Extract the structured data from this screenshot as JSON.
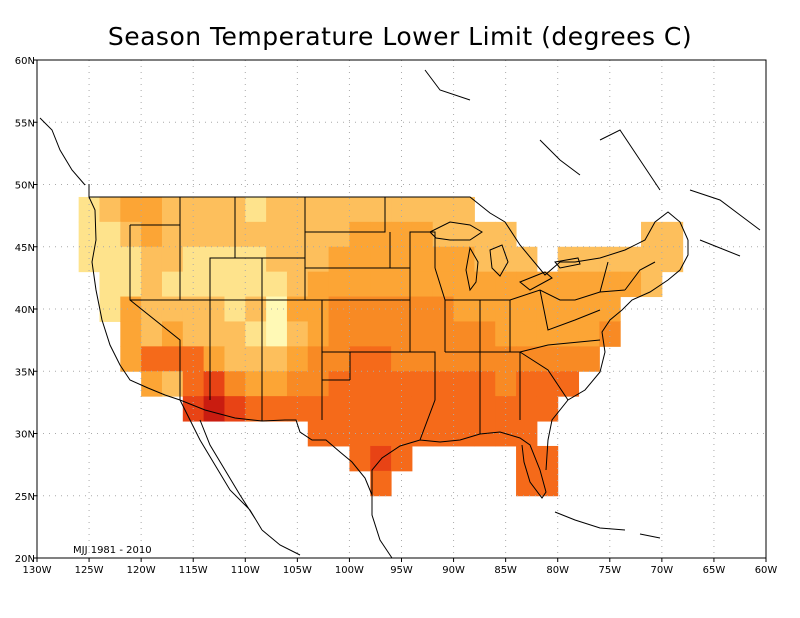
{
  "title": "Season Temperature Lower Limit (degrees C)",
  "period_label": "MJJ 1981 - 2010",
  "x_tick_labels": [
    "130W",
    "125W",
    "120W",
    "115W",
    "110W",
    "105W",
    "100W",
    "95W",
    "90W",
    "85W",
    "80W",
    "75W",
    "70W",
    "65W",
    "60W"
  ],
  "y_tick_labels": [
    "20N",
    "25N",
    "30N",
    "35N",
    "40N",
    "45N",
    "50N",
    "55N",
    "60N"
  ],
  "map_extent": {
    "lon_min": -130,
    "lon_max": -60,
    "lat_min": 20,
    "lat_max": 60
  },
  "colors": {
    "c1": "#fee38c",
    "c2": "#fdbf5c",
    "c3": "#fca535",
    "c4": "#f88a24",
    "c5": "#f56a1a",
    "c6": "#e84315",
    "c7": "#c91c10",
    "c8": "#fff9b5",
    "grid": "#aaaaaa",
    "land_line": "#000000"
  },
  "chart_data": {
    "type": "heatmap",
    "title": "Season Temperature Lower Limit (degrees C)",
    "xlabel": "",
    "ylabel": "",
    "xlim": [
      -130,
      -60
    ],
    "ylim": [
      20,
      60
    ],
    "grid": true,
    "cell_size_deg": 2,
    "rows": [
      {
        "lat": 48,
        "cells": [
          [
            -125,
            "c1"
          ],
          [
            -123,
            "c2"
          ],
          [
            -121,
            "c3"
          ],
          [
            -119,
            "c3"
          ],
          [
            -117,
            "c2"
          ],
          [
            -115,
            "c2"
          ],
          [
            -113,
            "c2"
          ],
          [
            -111,
            "c2"
          ],
          [
            -109,
            "c1"
          ],
          [
            -107,
            "c2"
          ],
          [
            -105,
            "c2"
          ],
          [
            -103,
            "c2"
          ],
          [
            -101,
            "c2"
          ],
          [
            -99,
            "c2"
          ],
          [
            -97,
            "c2"
          ],
          [
            -95,
            "c2"
          ],
          [
            -93,
            "c2"
          ],
          [
            -91,
            "c2"
          ],
          [
            -89,
            "c2"
          ]
        ]
      },
      {
        "lat": 46,
        "cells": [
          [
            -125,
            "c1"
          ],
          [
            -123,
            "c1"
          ],
          [
            -121,
            "c2"
          ],
          [
            -119,
            "c3"
          ],
          [
            -117,
            "c2"
          ],
          [
            -115,
            "c2"
          ],
          [
            -113,
            "c2"
          ],
          [
            -111,
            "c2"
          ],
          [
            -109,
            "c2"
          ],
          [
            -107,
            "c2"
          ],
          [
            -105,
            "c2"
          ],
          [
            -103,
            "c2"
          ],
          [
            -101,
            "c2"
          ],
          [
            -99,
            "c3"
          ],
          [
            -97,
            "c3"
          ],
          [
            -95,
            "c3"
          ],
          [
            -93,
            "c3"
          ],
          [
            -91,
            "c2"
          ],
          [
            -89,
            "c2"
          ],
          [
            -87,
            "c2"
          ],
          [
            -85,
            "c2"
          ],
          [
            -71,
            "c2"
          ],
          [
            -69,
            "c2"
          ]
        ]
      },
      {
        "lat": 44,
        "cells": [
          [
            -125,
            "c1"
          ],
          [
            -123,
            "c1"
          ],
          [
            -121,
            "c1"
          ],
          [
            -119,
            "c2"
          ],
          [
            -117,
            "c2"
          ],
          [
            -115,
            "c1"
          ],
          [
            -113,
            "c1"
          ],
          [
            -111,
            "c1"
          ],
          [
            -109,
            "c1"
          ],
          [
            -107,
            "c2"
          ],
          [
            -105,
            "c2"
          ],
          [
            -103,
            "c2"
          ],
          [
            -101,
            "c3"
          ],
          [
            -99,
            "c3"
          ],
          [
            -97,
            "c3"
          ],
          [
            -95,
            "c3"
          ],
          [
            -93,
            "c3"
          ],
          [
            -91,
            "c3"
          ],
          [
            -89,
            "c3"
          ],
          [
            -87,
            "c2"
          ],
          [
            -85,
            "c2"
          ],
          [
            -83,
            "c2"
          ],
          [
            -79,
            "c2"
          ],
          [
            -77,
            "c2"
          ],
          [
            -75,
            "c2"
          ],
          [
            -73,
            "c2"
          ],
          [
            -71,
            "c2"
          ],
          [
            -69,
            "c2"
          ]
        ]
      },
      {
        "lat": 42,
        "cells": [
          [
            -123,
            "c1"
          ],
          [
            -121,
            "c1"
          ],
          [
            -119,
            "c2"
          ],
          [
            -117,
            "c1"
          ],
          [
            -115,
            "c1"
          ],
          [
            -113,
            "c1"
          ],
          [
            -111,
            "c1"
          ],
          [
            -109,
            "c1"
          ],
          [
            -107,
            "c1"
          ],
          [
            -105,
            "c2"
          ],
          [
            -103,
            "c3"
          ],
          [
            -101,
            "c3"
          ],
          [
            -99,
            "c3"
          ],
          [
            -97,
            "c3"
          ],
          [
            -95,
            "c3"
          ],
          [
            -93,
            "c3"
          ],
          [
            -91,
            "c3"
          ],
          [
            -89,
            "c3"
          ],
          [
            -87,
            "c3"
          ],
          [
            -85,
            "c3"
          ],
          [
            -83,
            "c3"
          ],
          [
            -81,
            "c3"
          ],
          [
            -79,
            "c3"
          ],
          [
            -77,
            "c3"
          ],
          [
            -75,
            "c3"
          ],
          [
            -73,
            "c3"
          ],
          [
            -71,
            "c2"
          ]
        ]
      },
      {
        "lat": 40,
        "cells": [
          [
            -123,
            "c1"
          ],
          [
            -121,
            "c3"
          ],
          [
            -119,
            "c2"
          ],
          [
            -117,
            "c2"
          ],
          [
            -115,
            "c2"
          ],
          [
            -113,
            "c2"
          ],
          [
            -111,
            "c1"
          ],
          [
            -109,
            "c2"
          ],
          [
            -107,
            "c8"
          ],
          [
            -105,
            "c3"
          ],
          [
            -103,
            "c3"
          ],
          [
            -101,
            "c4"
          ],
          [
            -99,
            "c4"
          ],
          [
            -97,
            "c4"
          ],
          [
            -95,
            "c4"
          ],
          [
            -93,
            "c4"
          ],
          [
            -91,
            "c4"
          ],
          [
            -89,
            "c3"
          ],
          [
            -87,
            "c3"
          ],
          [
            -85,
            "c3"
          ],
          [
            -83,
            "c3"
          ],
          [
            -81,
            "c3"
          ],
          [
            -79,
            "c3"
          ],
          [
            -77,
            "c3"
          ],
          [
            -75,
            "c3"
          ]
        ]
      },
      {
        "lat": 38,
        "cells": [
          [
            -121,
            "c3"
          ],
          [
            -119,
            "c2"
          ],
          [
            -117,
            "c3"
          ],
          [
            -115,
            "c2"
          ],
          [
            -113,
            "c2"
          ],
          [
            -111,
            "c2"
          ],
          [
            -109,
            "c1"
          ],
          [
            -107,
            "c8"
          ],
          [
            -105,
            "c2"
          ],
          [
            -103,
            "c3"
          ],
          [
            -101,
            "c4"
          ],
          [
            -99,
            "c4"
          ],
          [
            -97,
            "c4"
          ],
          [
            -95,
            "c4"
          ],
          [
            -93,
            "c4"
          ],
          [
            -91,
            "c4"
          ],
          [
            -89,
            "c4"
          ],
          [
            -87,
            "c4"
          ],
          [
            -85,
            "c3"
          ],
          [
            -83,
            "c3"
          ],
          [
            -81,
            "c3"
          ],
          [
            -79,
            "c3"
          ],
          [
            -77,
            "c3"
          ],
          [
            -75,
            "c4"
          ]
        ]
      },
      {
        "lat": 36,
        "cells": [
          [
            -121,
            "c3"
          ],
          [
            -119,
            "c5"
          ],
          [
            -117,
            "c5"
          ],
          [
            -115,
            "c5"
          ],
          [
            -113,
            "c3"
          ],
          [
            -111,
            "c2"
          ],
          [
            -109,
            "c2"
          ],
          [
            -107,
            "c2"
          ],
          [
            -105,
            "c3"
          ],
          [
            -103,
            "c4"
          ],
          [
            -101,
            "c4"
          ],
          [
            -99,
            "c5"
          ],
          [
            -97,
            "c5"
          ],
          [
            -95,
            "c4"
          ],
          [
            -93,
            "c4"
          ],
          [
            -91,
            "c4"
          ],
          [
            -89,
            "c4"
          ],
          [
            -87,
            "c4"
          ],
          [
            -85,
            "c4"
          ],
          [
            -83,
            "c4"
          ],
          [
            -81,
            "c4"
          ],
          [
            -79,
            "c4"
          ],
          [
            -77,
            "c4"
          ]
        ]
      },
      {
        "lat": 34,
        "cells": [
          [
            -119,
            "c3"
          ],
          [
            -117,
            "c2"
          ],
          [
            -115,
            "c5"
          ],
          [
            -113,
            "c6"
          ],
          [
            -111,
            "c4"
          ],
          [
            -109,
            "c3"
          ],
          [
            -107,
            "c3"
          ],
          [
            -105,
            "c4"
          ],
          [
            -103,
            "c4"
          ],
          [
            -101,
            "c5"
          ],
          [
            -99,
            "c5"
          ],
          [
            -97,
            "c5"
          ],
          [
            -95,
            "c5"
          ],
          [
            -93,
            "c5"
          ],
          [
            -91,
            "c5"
          ],
          [
            -89,
            "c5"
          ],
          [
            -87,
            "c5"
          ],
          [
            -85,
            "c4"
          ],
          [
            -83,
            "c5"
          ],
          [
            -81,
            "c5"
          ],
          [
            -79,
            "c5"
          ]
        ]
      },
      {
        "lat": 32,
        "cells": [
          [
            -115,
            "c6"
          ],
          [
            -113,
            "c7"
          ],
          [
            -111,
            "c6"
          ],
          [
            -109,
            "c5"
          ],
          [
            -107,
            "c5"
          ],
          [
            -105,
            "c5"
          ],
          [
            -103,
            "c5"
          ],
          [
            -101,
            "c5"
          ],
          [
            -99,
            "c5"
          ],
          [
            -97,
            "c5"
          ],
          [
            -95,
            "c5"
          ],
          [
            -93,
            "c5"
          ],
          [
            -91,
            "c5"
          ],
          [
            -89,
            "c5"
          ],
          [
            -87,
            "c5"
          ],
          [
            -85,
            "c5"
          ],
          [
            -83,
            "c5"
          ],
          [
            -81,
            "c5"
          ]
        ]
      },
      {
        "lat": 30,
        "cells": [
          [
            -103,
            "c5"
          ],
          [
            -101,
            "c5"
          ],
          [
            -99,
            "c5"
          ],
          [
            -97,
            "c5"
          ],
          [
            -95,
            "c5"
          ],
          [
            -93,
            "c5"
          ],
          [
            -91,
            "c5"
          ],
          [
            -89,
            "c5"
          ],
          [
            -87,
            "c5"
          ],
          [
            -85,
            "c5"
          ],
          [
            -83,
            "c5"
          ]
        ]
      },
      {
        "lat": 28,
        "cells": [
          [
            -99,
            "c5"
          ],
          [
            -97,
            "c6"
          ],
          [
            -95,
            "c5"
          ],
          [
            -83,
            "c5"
          ],
          [
            -81,
            "c5"
          ]
        ]
      },
      {
        "lat": 26,
        "cells": [
          [
            -97,
            "c5"
          ],
          [
            -83,
            "c5"
          ],
          [
            -81,
            "c5"
          ]
        ]
      }
    ]
  }
}
